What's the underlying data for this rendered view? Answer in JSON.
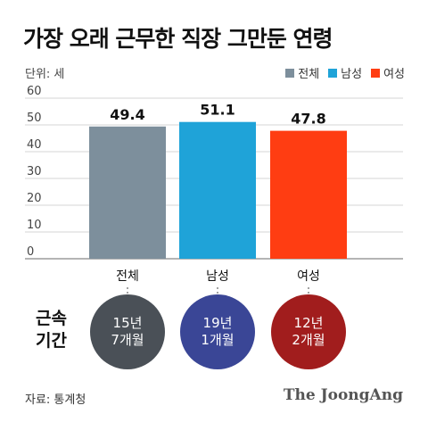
{
  "title": "가장 오래 근무한 직장 그만둔 연령",
  "unit_label": "단위: 세",
  "colors": {
    "total": "#7d8f9c",
    "male": "#1fa3d8",
    "female": "#ff3d12",
    "circle_total": "#4a5057",
    "circle_male": "#3a4696",
    "circle_female": "#a11d1d"
  },
  "chart_data": {
    "type": "bar",
    "categories": [
      "전체",
      "남성",
      "여성"
    ],
    "values": [
      49.4,
      51.1,
      47.8
    ],
    "value_labels": [
      "49.4",
      "51.1",
      "47.8"
    ],
    "ylim": [
      0,
      60
    ],
    "yticks": [
      0,
      10,
      20,
      30,
      40,
      50,
      60
    ],
    "ytick_labels": [
      "0",
      "10",
      "20",
      "30",
      "40",
      "50",
      "60"
    ],
    "grid": true,
    "legend": {
      "placement": "top-right",
      "entries": [
        "전체",
        "남성",
        "여성"
      ]
    }
  },
  "tenure": {
    "title_line1": "근속",
    "title_line2": "기간",
    "items": [
      {
        "line1": "15년",
        "line2": "7개월"
      },
      {
        "line1": "19년",
        "line2": "1개월"
      },
      {
        "line1": "12년",
        "line2": "2개월"
      }
    ]
  },
  "source": "자료: 통계청",
  "brand": "The JoongAng"
}
